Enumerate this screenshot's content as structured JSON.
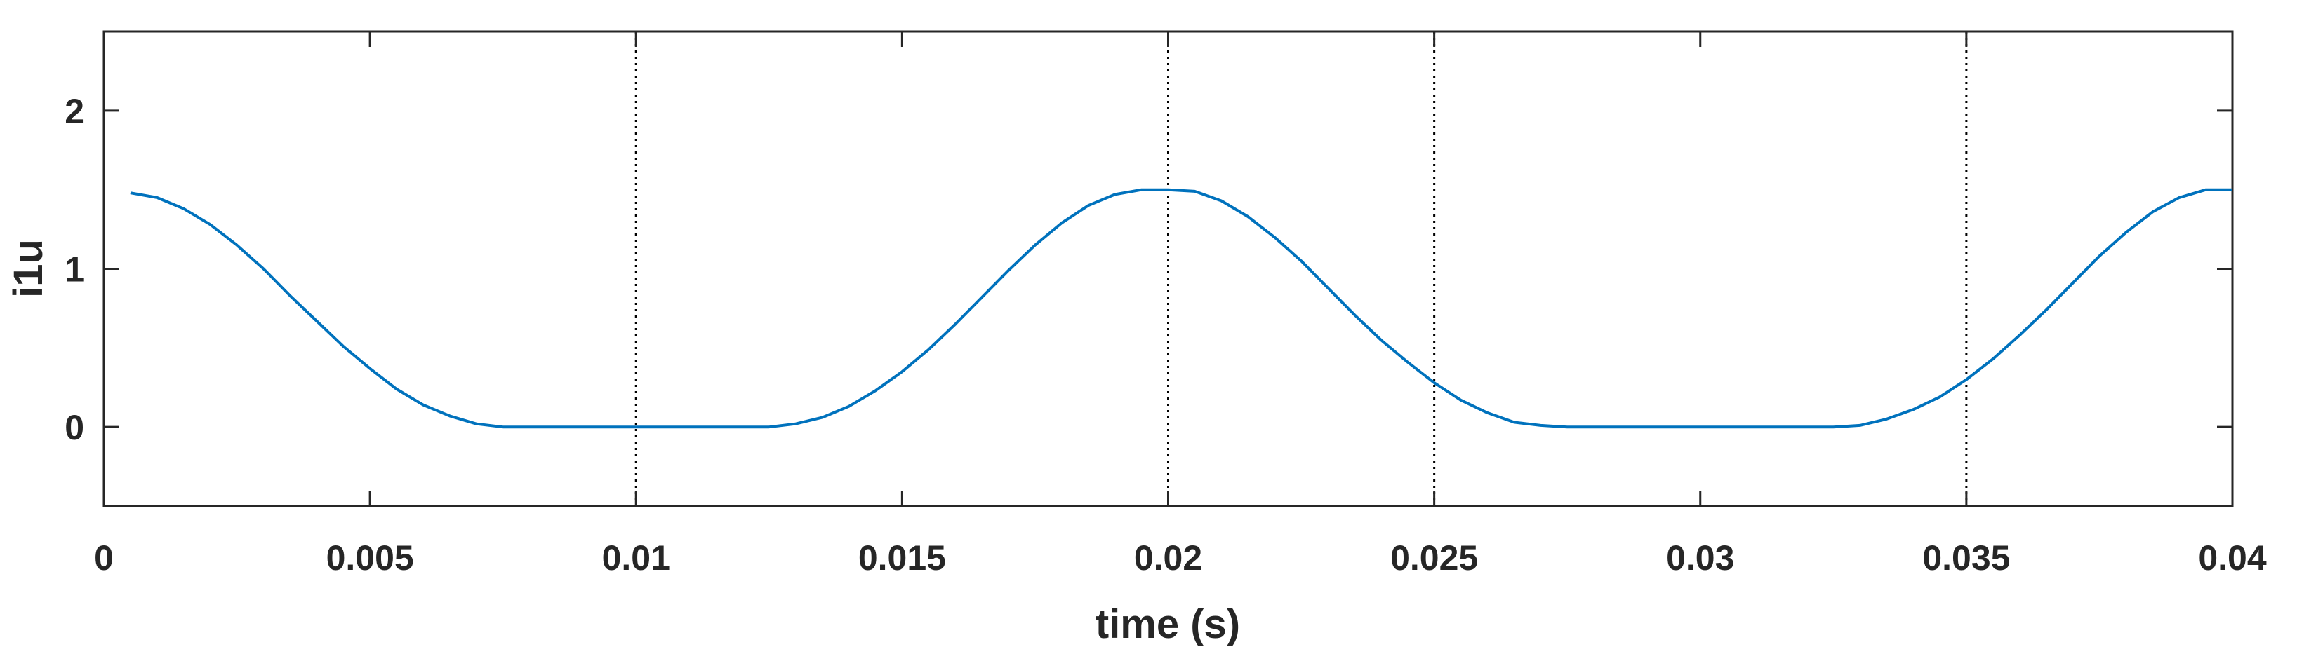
{
  "chart_data": {
    "type": "line",
    "xlabel": "time (s)",
    "ylabel": "i1u",
    "xlim": [
      0,
      0.04
    ],
    "ylim": [
      -0.5,
      2.5
    ],
    "xticks": [
      0,
      0.005,
      0.01,
      0.015,
      0.02,
      0.025,
      0.03,
      0.035,
      0.04
    ],
    "xtick_labels": [
      "0",
      "0.005",
      "0.01",
      "0.015",
      "0.02",
      "0.025",
      "0.03",
      "0.035",
      "0.04"
    ],
    "yticks": [
      0,
      1,
      2
    ],
    "ytick_labels": [
      "0",
      "1",
      "2"
    ],
    "grid": false,
    "vertical_markers": [
      0.01,
      0.02,
      0.025,
      0.035
    ],
    "series": [
      {
        "color": "#0072BD",
        "x": [
          0.0005,
          0.001,
          0.0015,
          0.002,
          0.0025,
          0.003,
          0.0035,
          0.004,
          0.0045,
          0.005,
          0.0055,
          0.006,
          0.0065,
          0.007,
          0.0075,
          0.008,
          0.0085,
          0.009,
          0.0095,
          0.01,
          0.0105,
          0.011,
          0.0115,
          0.012,
          0.0125,
          0.013,
          0.0135,
          0.014,
          0.0145,
          0.015,
          0.0155,
          0.016,
          0.0165,
          0.017,
          0.0175,
          0.018,
          0.0185,
          0.019,
          0.0195,
          0.02,
          0.0205,
          0.021,
          0.0215,
          0.022,
          0.0225,
          0.023,
          0.0235,
          0.024,
          0.0245,
          0.025,
          0.0255,
          0.026,
          0.0265,
          0.027,
          0.0275,
          0.028,
          0.0285,
          0.029,
          0.0295,
          0.03,
          0.0305,
          0.031,
          0.0315,
          0.032,
          0.0325,
          0.033,
          0.0335,
          0.034,
          0.0345,
          0.035,
          0.0355,
          0.036,
          0.0365,
          0.037,
          0.0375,
          0.038,
          0.0385,
          0.039,
          0.0395,
          0.04
        ],
        "y": [
          1.48,
          1.45,
          1.38,
          1.28,
          1.15,
          1.0,
          0.83,
          0.67,
          0.51,
          0.37,
          0.24,
          0.14,
          0.07,
          0.02,
          0.0,
          0.0,
          0.0,
          0.0,
          0.0,
          0.0,
          0.0,
          0.0,
          0.0,
          0.0,
          0.0,
          0.02,
          0.06,
          0.13,
          0.23,
          0.35,
          0.49,
          0.65,
          0.82,
          0.99,
          1.15,
          1.29,
          1.4,
          1.47,
          1.5,
          1.5,
          1.49,
          1.43,
          1.33,
          1.2,
          1.05,
          0.88,
          0.71,
          0.55,
          0.41,
          0.28,
          0.17,
          0.09,
          0.03,
          0.01,
          0.0,
          0.0,
          0.0,
          0.0,
          0.0,
          0.0,
          0.0,
          0.0,
          0.0,
          0.0,
          0.0,
          0.01,
          0.05,
          0.11,
          0.19,
          0.3,
          0.43,
          0.58,
          0.74,
          0.91,
          1.08,
          1.23,
          1.36,
          1.45,
          1.5,
          1.5
        ]
      }
    ]
  }
}
